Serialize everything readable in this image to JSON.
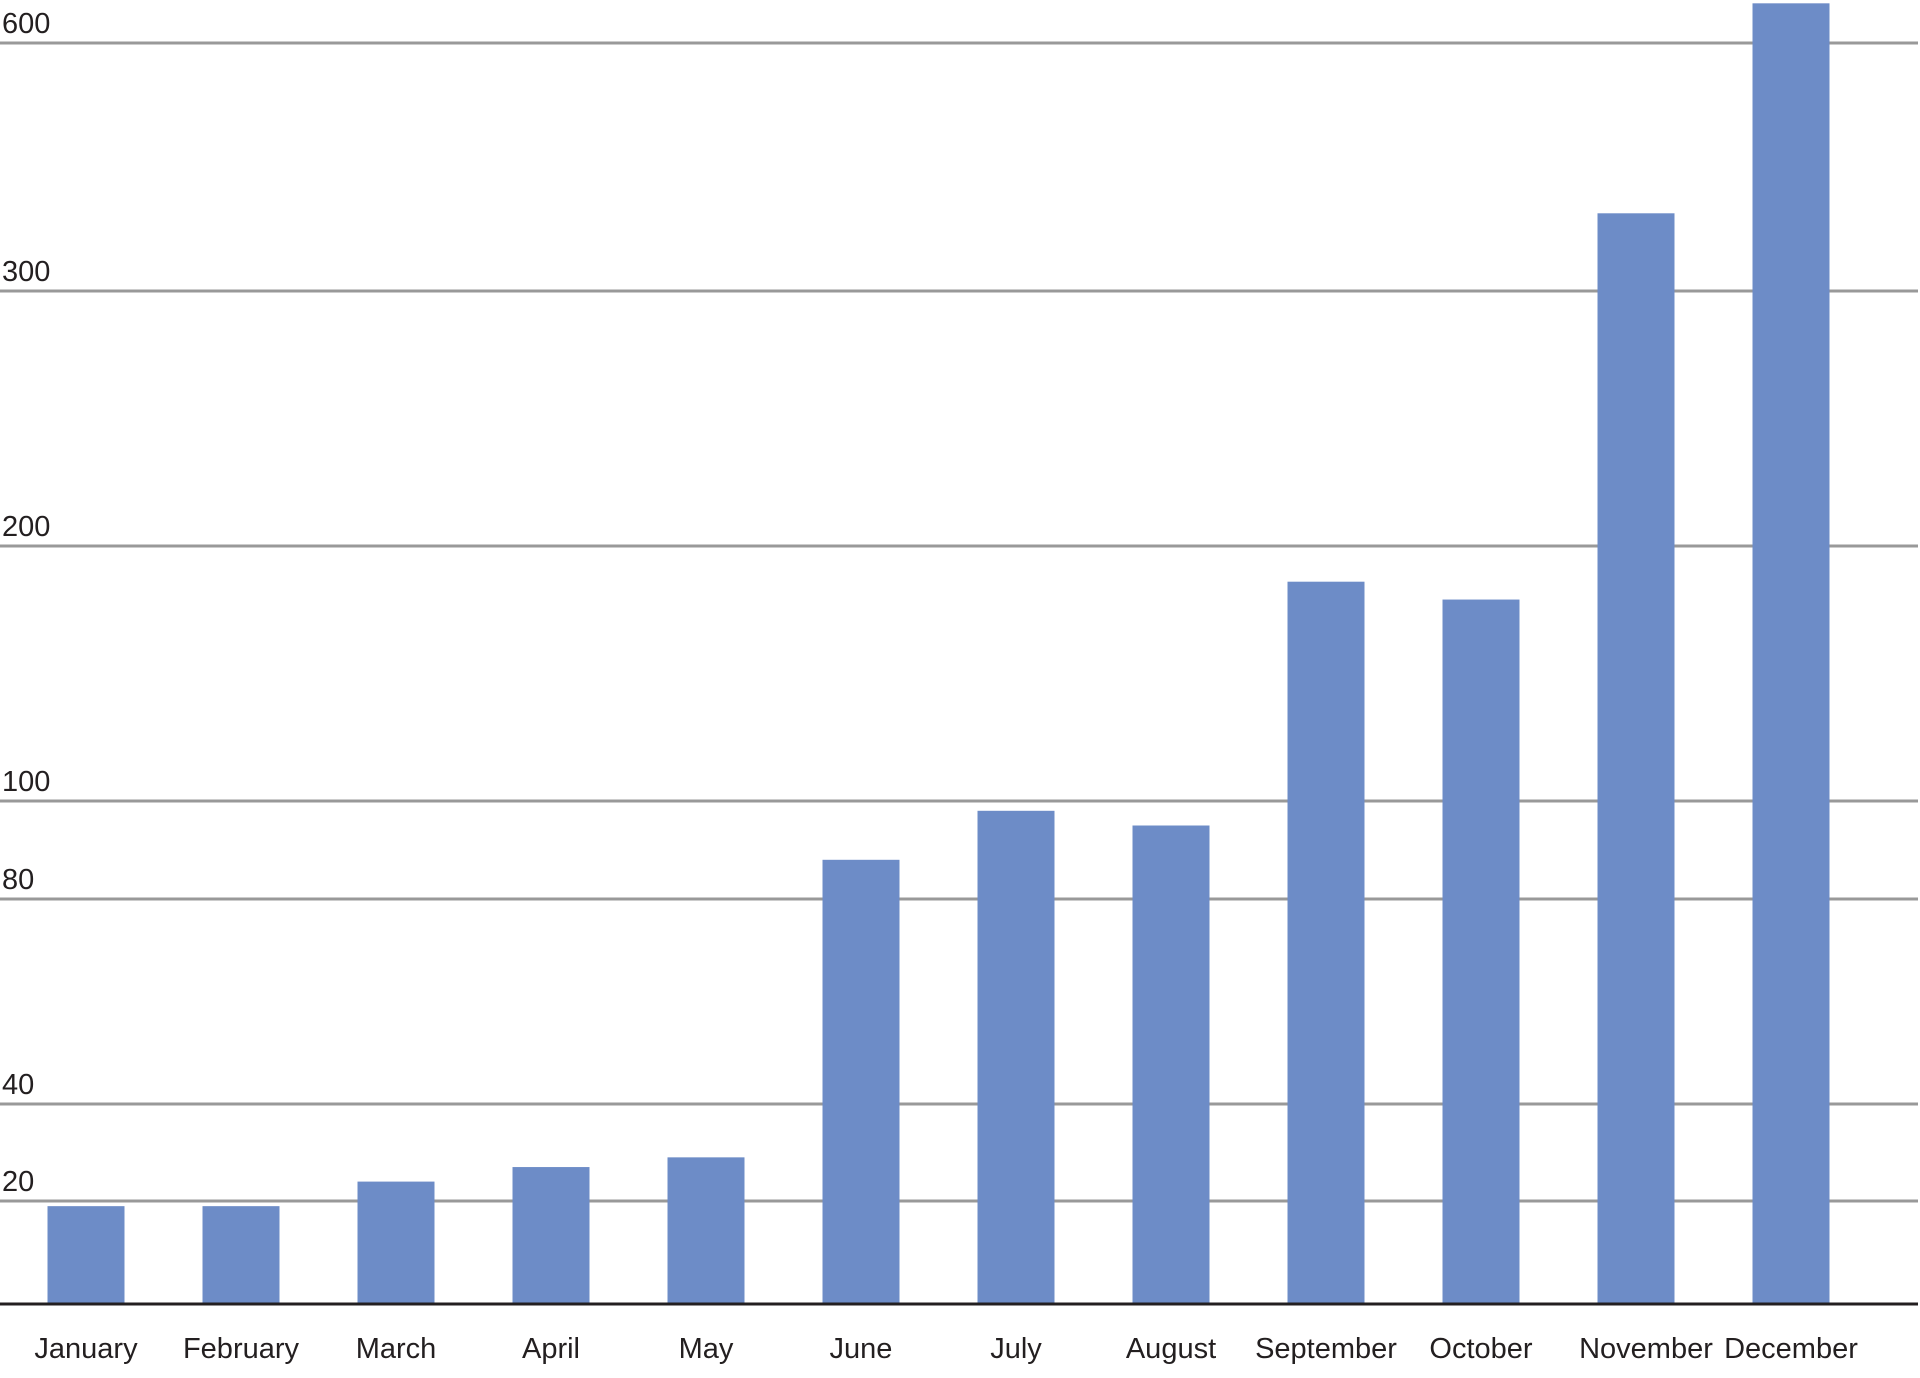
{
  "chart_data": {
    "type": "bar",
    "categories": [
      "January",
      "February",
      "March",
      "April",
      "May",
      "June",
      "July",
      "August",
      "September",
      "October",
      "November",
      "December"
    ],
    "values": [
      19,
      19,
      24,
      27,
      29,
      88,
      98,
      95,
      186,
      179,
      394,
      648
    ],
    "color": "#6d8cc7",
    "ylim": [
      0,
      650
    ],
    "yticks": [
      20,
      40,
      80,
      100,
      200,
      300,
      600
    ],
    "grid": true
  }
}
